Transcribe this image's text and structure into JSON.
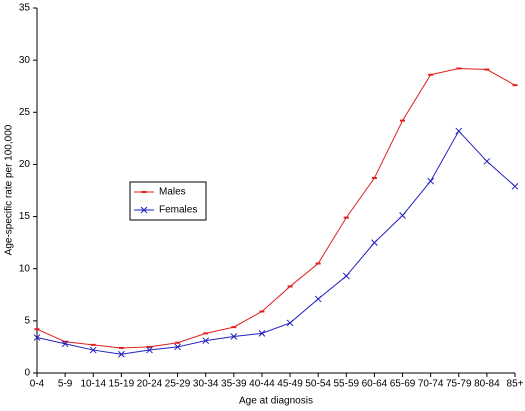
{
  "chart_data": {
    "type": "line",
    "x_label": "Age at diagnosis",
    "y_label": "Age-specific rate per 100,000",
    "categories": [
      "0-4",
      "5-9",
      "10-14",
      "15-19",
      "20-24",
      "25-29",
      "30-34",
      "35-39",
      "40-44",
      "45-49",
      "50-54",
      "55-59",
      "60-64",
      "65-69",
      "70-74",
      "75-79",
      "80-84",
      "85+"
    ],
    "series": [
      {
        "name": "Males",
        "color": "#e02020",
        "marker": "dash",
        "values": [
          4.2,
          3.0,
          2.7,
          2.4,
          2.5,
          2.9,
          3.8,
          4.4,
          5.9,
          8.3,
          10.5,
          14.9,
          18.7,
          24.2,
          28.6,
          29.2,
          29.1,
          27.6
        ]
      },
      {
        "name": "Females",
        "color": "#2020c0",
        "marker": "x",
        "values": [
          3.4,
          2.8,
          2.2,
          1.8,
          2.2,
          2.5,
          3.1,
          3.5,
          3.8,
          4.8,
          7.1,
          9.3,
          12.5,
          15.1,
          18.4,
          23.2,
          20.3,
          17.9
        ]
      }
    ],
    "ylim": [
      0,
      35
    ],
    "yticks": [
      0,
      5,
      10,
      15,
      20,
      25,
      30,
      35
    ],
    "grid": false
  }
}
